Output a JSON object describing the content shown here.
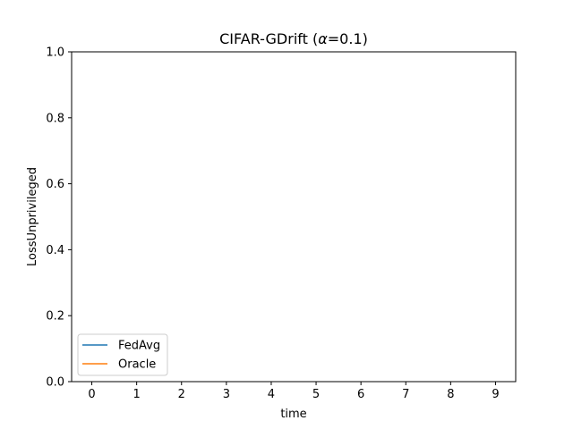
{
  "chart_data": {
    "type": "line",
    "title_main": "CIFAR-GDrift (",
    "title_greek": "α",
    "title_rest": "=0.1)",
    "xlabel": "time",
    "ylabel": "LossUnprivileged",
    "x_ticks": [
      "0",
      "1",
      "2",
      "3",
      "4",
      "5",
      "6",
      "7",
      "8",
      "9"
    ],
    "y_ticks": [
      "0.0",
      "0.2",
      "0.4",
      "0.6",
      "0.8",
      "1.0"
    ],
    "xlim": [
      -0.45,
      9.45
    ],
    "ylim": [
      0,
      1
    ],
    "grid": false,
    "legend_position": "lower-left",
    "series": [
      {
        "name": "FedAvg",
        "color": "#1f77b4",
        "x": [],
        "y": []
      },
      {
        "name": "Oracle",
        "color": "#ff7f0e",
        "x": [],
        "y": []
      }
    ]
  }
}
